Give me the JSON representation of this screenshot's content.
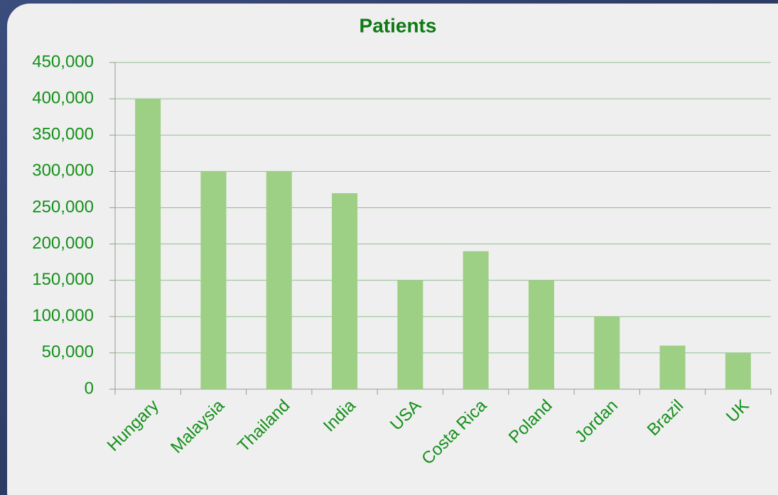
{
  "chart_data": {
    "type": "bar",
    "title": "Patients",
    "categories": [
      "Hungary",
      "Malaysia",
      "Thailand",
      "India",
      "USA",
      "Costa Rica",
      "Poland",
      "Jordan",
      "Brazil",
      "UK"
    ],
    "values": [
      400000,
      300000,
      300000,
      270000,
      150000,
      190000,
      150000,
      100000,
      60000,
      50000
    ],
    "color": "#9dcf84",
    "ylim": [
      0,
      450000
    ],
    "yticks": [
      0,
      {
        "value": 50000,
        "label": "50,000"
      },
      {
        "value": 100000,
        "label": "100,000"
      },
      {
        "value": 150000,
        "label": "150,000"
      },
      {
        "value": 200000,
        "label": "200,000"
      },
      {
        "value": 250000,
        "label": "250,000"
      },
      {
        "value": 300000,
        "label": "300,000"
      },
      {
        "value": 350000,
        "label": "350,000"
      },
      {
        "value": 400000,
        "label": "400,000"
      },
      {
        "value": 450000,
        "label": "450,000"
      }
    ],
    "grid": true
  }
}
